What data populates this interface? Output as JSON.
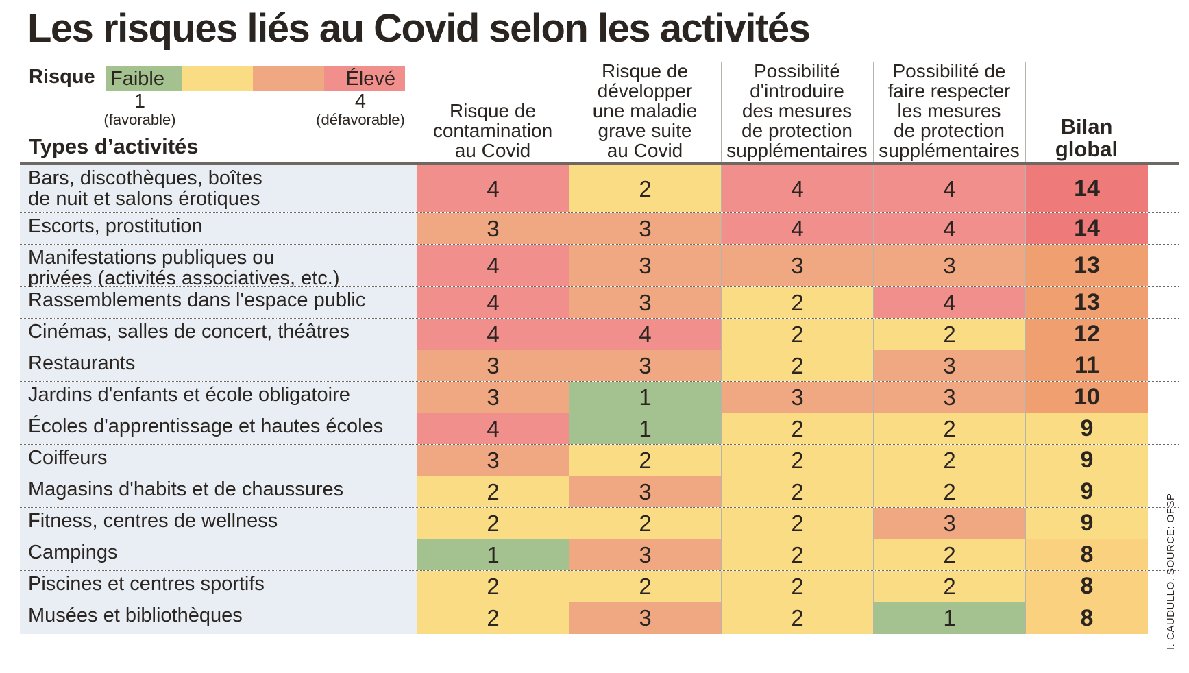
{
  "chart_data": {
    "type": "table",
    "title": "Les risques liés au Covid selon les activités",
    "legend": {
      "label": "Risque",
      "low_label": "Faible",
      "high_label": "Élevé",
      "low_value": "1",
      "high_value": "4",
      "low_note": "(favorable)",
      "high_note": "(défavorable)",
      "colors": [
        "#a4c28f",
        "#fadc85",
        "#f0a882",
        "#f18f8d"
      ]
    },
    "row_header": "Types d’activités",
    "columns": [
      "Risque de\ncontamination\nau Covid",
      "Risque de\ndévelopper\nune maladie\ngrave suite\nau Covid",
      "Possibilité\nd'introduire\ndes mesures\nde protection\nsupplémentaires",
      "Possibilité de\nfaire respecter\nles mesures\nde protection\nsupplémentaires",
      "Bilan\nglobal"
    ],
    "rows": [
      {
        "label": "Bars, discothèques, boîtes\nde nuit et salons érotiques",
        "values": [
          4,
          2,
          4,
          4
        ],
        "total": 14
      },
      {
        "label": "Escorts, prostitution",
        "values": [
          3,
          3,
          4,
          4
        ],
        "total": 14
      },
      {
        "label": "Manifestations publiques ou\nprivées (activités associatives, etc.)",
        "values": [
          4,
          3,
          3,
          3
        ],
        "total": 13
      },
      {
        "label": "Rassemblements dans l'espace public",
        "values": [
          4,
          3,
          2,
          4
        ],
        "total": 13
      },
      {
        "label": "Cinémas, salles de concert, théâtres",
        "values": [
          4,
          4,
          2,
          2
        ],
        "total": 12
      },
      {
        "label": "Restaurants",
        "values": [
          3,
          3,
          2,
          3
        ],
        "total": 11
      },
      {
        "label": "Jardins d'enfants et école obligatoire",
        "values": [
          3,
          1,
          3,
          3
        ],
        "total": 10
      },
      {
        "label": "Écoles d'apprentissage et hautes écoles",
        "values": [
          4,
          1,
          2,
          2
        ],
        "total": 9
      },
      {
        "label": "Coiffeurs",
        "values": [
          3,
          2,
          2,
          2
        ],
        "total": 9
      },
      {
        "label": "Magasins d'habits et de chaussures",
        "values": [
          2,
          3,
          2,
          2
        ],
        "total": 9
      },
      {
        "label": "Fitness, centres de wellness",
        "values": [
          2,
          2,
          2,
          3
        ],
        "total": 9
      },
      {
        "label": "Campings",
        "values": [
          1,
          3,
          2,
          2
        ],
        "total": 8
      },
      {
        "label": "Piscines et centres sportifs",
        "values": [
          2,
          2,
          2,
          2
        ],
        "total": 8
      },
      {
        "label": "Musées et bibliothèques",
        "values": [
          2,
          3,
          2,
          1
        ],
        "total": 8
      }
    ],
    "total_colors": {
      "14": "#ee7a79",
      "13": "#f0a070",
      "12": "#f0a070",
      "11": "#f0a070",
      "10": "#f0a070",
      "9": "#fadc85",
      "8": "#fad27f"
    },
    "credit": "I. CAUDULLO. SOURCE: OFSP"
  }
}
